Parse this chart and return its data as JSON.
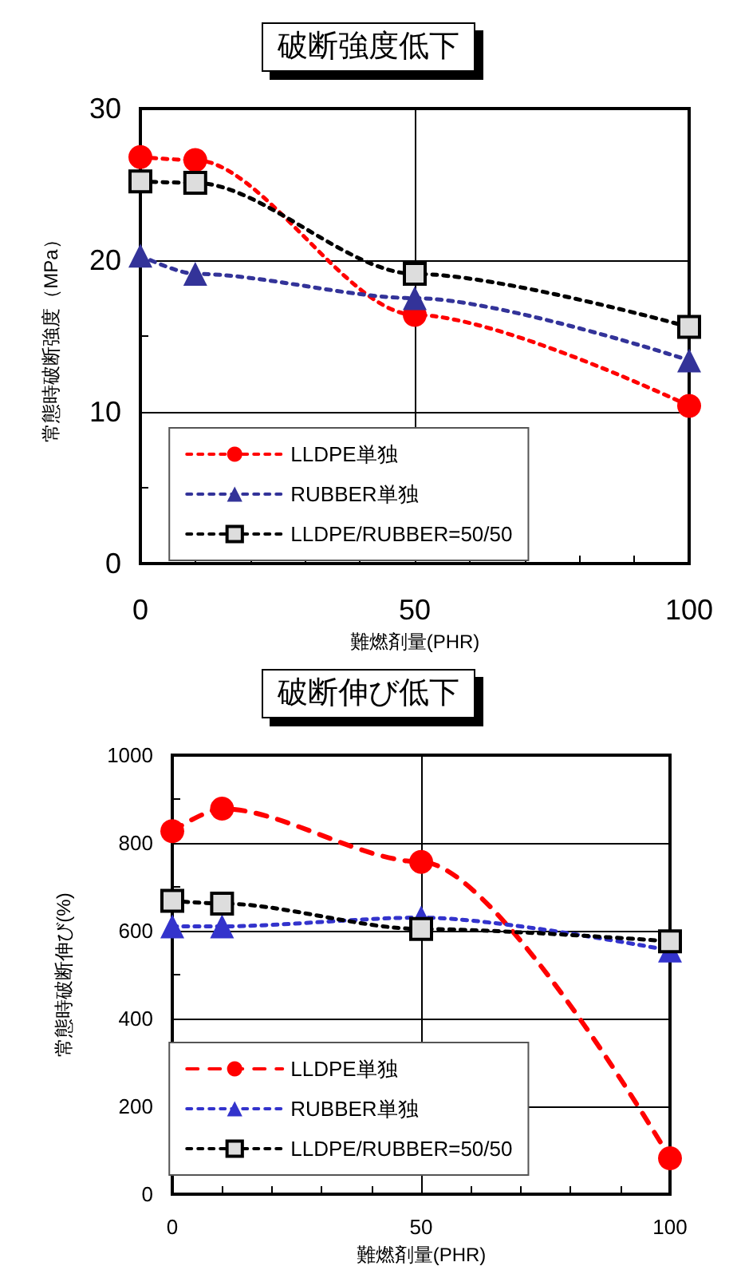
{
  "chart_data": [
    {
      "type": "line",
      "title": "破断強度低下",
      "xlabel": "難燃剤量(PHR)",
      "ylabel": "常態時破断強度（MPa）",
      "x": [
        0,
        10,
        50,
        100
      ],
      "xlim": [
        0,
        100
      ],
      "xticks": [
        0,
        {
          "value": 10,
          "label": null
        },
        {
          "value": 20,
          "label": null
        },
        {
          "value": 30,
          "label": null
        },
        {
          "value": 40,
          "label": null
        },
        50,
        {
          "value": 60,
          "label": null
        },
        {
          "value": 70,
          "label": null
        },
        {
          "value": 80,
          "label": null
        },
        {
          "value": 90,
          "label": null
        },
        100
      ],
      "ylim": [
        0,
        30
      ],
      "yticks": [
        0,
        {
          "value": 5,
          "label": null
        },
        10,
        {
          "value": 15,
          "label": null
        },
        20,
        {
          "value": 25,
          "label": null
        },
        30
      ],
      "grid": true,
      "legend": "bottom left",
      "series": [
        {
          "name": "LLDPE単独",
          "color": "#ff0000",
          "marker": "circle",
          "line_style": "dotted",
          "values": [
            26.8,
            26.6,
            16.4,
            10.4
          ]
        },
        {
          "name": "RUBBER単独",
          "color": "#333399",
          "marker": "triangle",
          "line_style": "dotted",
          "values": [
            20.3,
            19.1,
            17.5,
            13.4
          ]
        },
        {
          "name": "LLDPE/RUBBER=50/50",
          "color": "#000000",
          "marker": "square",
          "line_style": "dotted",
          "values": [
            25.2,
            25.1,
            19.1,
            15.6
          ]
        }
      ]
    },
    {
      "type": "line",
      "title": "破断伸び低下",
      "xlabel": "難燃剤量(PHR)",
      "ylabel": "常態時破断伸び(%)",
      "x": [
        0,
        10,
        50,
        100
      ],
      "xlim": [
        0,
        100
      ],
      "xticks": [
        0,
        {
          "value": 10,
          "label": null
        },
        {
          "value": 20,
          "label": null
        },
        {
          "value": 30,
          "label": null
        },
        {
          "value": 40,
          "label": null
        },
        50,
        {
          "value": 60,
          "label": null
        },
        {
          "value": 70,
          "label": null
        },
        {
          "value": 80,
          "label": null
        },
        {
          "value": 90,
          "label": null
        },
        100
      ],
      "ylim": [
        0,
        1000
      ],
      "yticks": [
        0,
        {
          "value": 100,
          "label": null
        },
        200,
        {
          "value": 300,
          "label": null
        },
        400,
        {
          "value": 500,
          "label": null
        },
        600,
        {
          "value": 700,
          "label": null
        },
        800,
        {
          "value": 900,
          "label": null
        },
        1000
      ],
      "grid": true,
      "legend": "bottom left",
      "series": [
        {
          "name": "LLDPE単独",
          "color": "#ff0000",
          "marker": "circle",
          "line_style": "dashed",
          "values": [
            827,
            878,
            757,
            82
          ]
        },
        {
          "name": "RUBBER単独",
          "color": "#3333cc",
          "marker": "triangle",
          "line_style": "dotted",
          "values": [
            610,
            610,
            630,
            555
          ]
        },
        {
          "name": "LLDPE/RUBBER=50/50",
          "color": "#000000",
          "marker": "square",
          "line_style": "dotted",
          "values": [
            668,
            662,
            604,
            576
          ]
        }
      ]
    }
  ]
}
